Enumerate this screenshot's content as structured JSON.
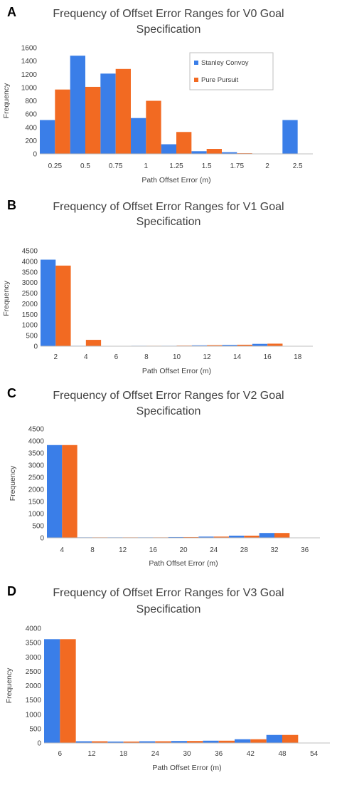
{
  "colors": {
    "stanley": "#3a7ee8",
    "pure": "#f26a22",
    "axis": "#bfbfbf",
    "text": "#404040"
  },
  "legend": {
    "stanley": "Stanley Convoy",
    "pure": "Pure Pursuit"
  },
  "chart_data": [
    {
      "type": "bar",
      "panel": "A",
      "title": [
        "Frequency of Offset Error Ranges for V0 Goal",
        "Specification"
      ],
      "xlabel": "Path Offset Error (m)",
      "ylabel": "Frequency",
      "ylim": [
        0,
        1600
      ],
      "yticks": [
        0,
        200,
        400,
        600,
        800,
        1000,
        1200,
        1400,
        1600
      ],
      "categories": [
        "0.25",
        "0.5",
        "0.75",
        "1",
        "1.25",
        "1.5",
        "1.75",
        "2",
        "2.5"
      ],
      "legend": true,
      "series": [
        {
          "name": "Stanley Convoy",
          "values": [
            510,
            1480,
            1210,
            540,
            145,
            40,
            25,
            5,
            510
          ]
        },
        {
          "name": "Pure Pursuit",
          "values": [
            970,
            1010,
            1280,
            800,
            330,
            75,
            10,
            5,
            0
          ]
        }
      ]
    },
    {
      "type": "bar",
      "panel": "B",
      "title": [
        "Frequency of Offset Error Ranges for V1 Goal",
        "Specification"
      ],
      "xlabel": "Path Offset Error (m)",
      "ylabel": "Frequency",
      "ylim": [
        0,
        4500
      ],
      "yticks": [
        0,
        500,
        1000,
        1500,
        2000,
        2500,
        3000,
        3500,
        4000,
        4500
      ],
      "categories": [
        "2",
        "4",
        "6",
        "8",
        "10",
        "12",
        "14",
        "16",
        "18"
      ],
      "legend": false,
      "series": [
        {
          "name": "Stanley Convoy",
          "values": [
            4080,
            20,
            10,
            20,
            20,
            40,
            60,
            110,
            0
          ]
        },
        {
          "name": "Pure Pursuit",
          "values": [
            3800,
            300,
            10,
            20,
            30,
            50,
            70,
            120,
            0
          ]
        }
      ]
    },
    {
      "type": "bar",
      "panel": "C",
      "title": [
        "Frequency of Offset Error Ranges for V2 Goal",
        "Specification"
      ],
      "xlabel": "Path Offset Error (m)",
      "ylabel": "Frequency",
      "ylim": [
        0,
        4500
      ],
      "yticks": [
        0,
        500,
        1000,
        1500,
        2000,
        2500,
        3000,
        3500,
        4000,
        4500
      ],
      "categories": [
        "4",
        "8",
        "12",
        "16",
        "20",
        "24",
        "28",
        "32",
        "36"
      ],
      "legend": false,
      "series": [
        {
          "name": "Stanley Convoy",
          "values": [
            3830,
            20,
            20,
            20,
            30,
            50,
            90,
            200,
            0
          ]
        },
        {
          "name": "Pure Pursuit",
          "values": [
            3830,
            20,
            20,
            20,
            30,
            50,
            90,
            200,
            0
          ]
        }
      ]
    },
    {
      "type": "bar",
      "panel": "D",
      "title": [
        "Frequency of Offset Error Ranges for V3 Goal",
        "Specification"
      ],
      "xlabel": "Path Offset Error (m)",
      "ylabel": "Frequency",
      "ylim": [
        0,
        4000
      ],
      "yticks": [
        0,
        500,
        1000,
        1500,
        2000,
        2500,
        3000,
        3500,
        4000
      ],
      "categories": [
        "6",
        "12",
        "18",
        "24",
        "30",
        "36",
        "42",
        "48",
        "54"
      ],
      "legend": false,
      "series": [
        {
          "name": "Stanley Convoy",
          "values": [
            3620,
            60,
            50,
            60,
            70,
            80,
            130,
            280,
            0
          ]
        },
        {
          "name": "Pure Pursuit",
          "values": [
            3620,
            60,
            50,
            60,
            70,
            80,
            130,
            280,
            0
          ]
        }
      ]
    }
  ]
}
